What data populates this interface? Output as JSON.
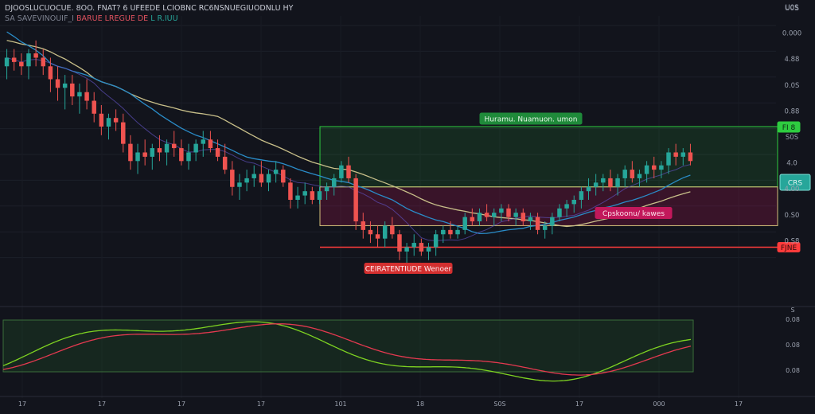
{
  "header": {
    "title": "DJOOSLUCUOCUE. 8OO. FNAT? 6 UFEEDE LCIOBNC RC6NSNUEGIUODNLU HY",
    "sub_a": "SA SAVEVINOUIF_I",
    "sub_b": "BARUE",
    "sub_c": "LREGUE DE",
    "sub_d": "L R.IUU"
  },
  "ticker_top": "U0S",
  "annotations": {
    "green_zone_label": "Huramu. Nuamuon. umon",
    "pink_zone_label": "Cpskoonu/ kawes",
    "red_line_label": "CEIRATENTIUDE Wenoer",
    "green_level_tag": "FI 8",
    "current_price_tag": "CRS",
    "red_level_tag": "FJNE"
  },
  "colors": {
    "bull": "#26a69a",
    "bear": "#ef5350",
    "ma_slow": "#c9c08a",
    "ma_fast": "#2a8cc8",
    "ma_purple": "#5c4fb8",
    "green_zone": "#2ecc40",
    "pink_zone": "#c2185b",
    "red_line": "#ff3b3b",
    "osc_fast": "#7ed321",
    "osc_slow": "#e53950"
  },
  "chart_data": {
    "type": "candlestick",
    "y_axis_labels": [
      "U0S",
      "0.000",
      "4.88",
      "0.0S",
      "0.88",
      "S0S",
      "4.0",
      "4.00",
      "0.S0",
      "0.S8"
    ],
    "x_axis_labels": [
      "17",
      "17",
      "17",
      "17",
      "101",
      "18",
      "S0S",
      "17",
      "000",
      "17"
    ],
    "oscillator_axis_labels": [
      "S",
      "0.08",
      "0.08",
      "0.08"
    ],
    "candles": [
      [
        58,
        62,
        55,
        60
      ],
      [
        60,
        62,
        57,
        59
      ],
      [
        59,
        61,
        56,
        58
      ],
      [
        58,
        62,
        55,
        61
      ],
      [
        61,
        64,
        58,
        60
      ],
      [
        60,
        62,
        56,
        58
      ],
      [
        58,
        60,
        52,
        55
      ],
      [
        55,
        58,
        50,
        53
      ],
      [
        53,
        56,
        48,
        54
      ],
      [
        54,
        56,
        49,
        51
      ],
      [
        51,
        54,
        47,
        52
      ],
      [
        52,
        55,
        48,
        50
      ],
      [
        50,
        52,
        45,
        47
      ],
      [
        47,
        49,
        42,
        44
      ],
      [
        44,
        47,
        41,
        46
      ],
      [
        46,
        48,
        43,
        45
      ],
      [
        45,
        47,
        38,
        40
      ],
      [
        40,
        42,
        34,
        36
      ],
      [
        36,
        40,
        33,
        38
      ],
      [
        38,
        41,
        35,
        37
      ],
      [
        37,
        40,
        34,
        39
      ],
      [
        39,
        42,
        36,
        38
      ],
      [
        38,
        41,
        35,
        40
      ],
      [
        40,
        43,
        37,
        39
      ],
      [
        39,
        41,
        35,
        36
      ],
      [
        36,
        40,
        34,
        38
      ],
      [
        38,
        41,
        36,
        40
      ],
      [
        40,
        43,
        37,
        41
      ],
      [
        41,
        43,
        38,
        39
      ],
      [
        39,
        41,
        36,
        37
      ],
      [
        37,
        40,
        33,
        34
      ],
      [
        34,
        36,
        28,
        30
      ],
      [
        30,
        33,
        27,
        31
      ],
      [
        31,
        34,
        29,
        32
      ],
      [
        32,
        35,
        30,
        33
      ],
      [
        33,
        36,
        30,
        31
      ],
      [
        31,
        34,
        29,
        33
      ],
      [
        33,
        36,
        31,
        34
      ],
      [
        34,
        35,
        30,
        31
      ],
      [
        31,
        32,
        25,
        27
      ],
      [
        27,
        30,
        25,
        28
      ],
      [
        28,
        31,
        26,
        29
      ],
      [
        29,
        30,
        26,
        27
      ],
      [
        27,
        30,
        26,
        29
      ],
      [
        29,
        31,
        27,
        30
      ],
      [
        30,
        33,
        28,
        32
      ],
      [
        32,
        36,
        31,
        35
      ],
      [
        35,
        37,
        31,
        32
      ],
      [
        32,
        33,
        20,
        22
      ],
      [
        22,
        24,
        18,
        20
      ],
      [
        20,
        22,
        17,
        19
      ],
      [
        19,
        21,
        16,
        18
      ],
      [
        18,
        22,
        16,
        21
      ],
      [
        21,
        23,
        18,
        19
      ],
      [
        19,
        20,
        13,
        15
      ],
      [
        15,
        17,
        12,
        16
      ],
      [
        16,
        19,
        14,
        17
      ],
      [
        17,
        18,
        14,
        15
      ],
      [
        15,
        17,
        13,
        16
      ],
      [
        16,
        20,
        14,
        19
      ],
      [
        19,
        21,
        17,
        20
      ],
      [
        20,
        22,
        18,
        19
      ],
      [
        19,
        21,
        18,
        20
      ],
      [
        20,
        24,
        19,
        23
      ],
      [
        23,
        25,
        21,
        22
      ],
      [
        22,
        25,
        21,
        24
      ],
      [
        24,
        26,
        22,
        23
      ],
      [
        23,
        25,
        21,
        24
      ],
      [
        24,
        26,
        22,
        25
      ],
      [
        25,
        26,
        22,
        23
      ],
      [
        23,
        25,
        21,
        24
      ],
      [
        24,
        25,
        21,
        22
      ],
      [
        22,
        24,
        20,
        23
      ],
      [
        23,
        24,
        19,
        20
      ],
      [
        20,
        22,
        18,
        21
      ],
      [
        21,
        24,
        19,
        23
      ],
      [
        23,
        26,
        22,
        25
      ],
      [
        25,
        27,
        23,
        26
      ],
      [
        26,
        28,
        24,
        27
      ],
      [
        27,
        30,
        25,
        29
      ],
      [
        29,
        32,
        27,
        30
      ],
      [
        30,
        33,
        28,
        31
      ],
      [
        31,
        33,
        29,
        32
      ],
      [
        32,
        34,
        29,
        30
      ],
      [
        30,
        33,
        28,
        32
      ],
      [
        32,
        35,
        30,
        34
      ],
      [
        34,
        36,
        31,
        32
      ],
      [
        32,
        34,
        30,
        33
      ],
      [
        33,
        36,
        31,
        35
      ],
      [
        35,
        37,
        32,
        34
      ],
      [
        34,
        36,
        32,
        35
      ],
      [
        35,
        39,
        33,
        38
      ],
      [
        38,
        40,
        35,
        37
      ],
      [
        37,
        39,
        35,
        38
      ],
      [
        38,
        40,
        35,
        36
      ]
    ],
    "levels": {
      "green_top": 44,
      "zone_mid": 30,
      "pink_bottom": 21,
      "red_line": 16
    }
  }
}
